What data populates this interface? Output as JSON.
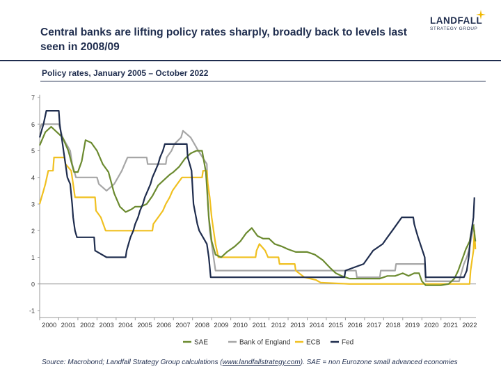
{
  "header": {
    "title": "Central banks are lifting policy rates sharply, broadly back to levels last seen in 2008/09",
    "subtitle": "Policy rates, January 2005 – October 2022"
  },
  "logo": {
    "name": "LANDFALL",
    "tagline": "STRATEGY GROUP"
  },
  "footer": {
    "prefix": "Source: Macrobond; Landfall Strategy Group calculations (",
    "link": "www.landfallstrategy.com",
    "suffix": "). SAE = non Eurozone small advanced economies"
  },
  "colors": {
    "navy": "#1f2d4e",
    "SAE": "#6b8a2f",
    "BoE": "#a6a6a6",
    "ECB": "#f0c020",
    "Fed": "#1f2d4e",
    "gold": "#f0b800"
  },
  "chart_data": {
    "type": "line",
    "title": "Policy rates, January 2005 – October 2022",
    "xlabel": "",
    "ylabel": "",
    "xlim": [
      2000,
      2022.83
    ],
    "ylim": [
      -1,
      7
    ],
    "yticks": [
      -1,
      0,
      1,
      2,
      3,
      4,
      5,
      6,
      7
    ],
    "xticks": [
      2000,
      2001,
      2002,
      2003,
      2004,
      2005,
      2006,
      2007,
      2008,
      2009,
      2010,
      2011,
      2012,
      2013,
      2014,
      2015,
      2016,
      2017,
      2018,
      2019,
      2020,
      2021,
      2022
    ],
    "legend_position": "bottom",
    "series": [
      {
        "name": "SAE",
        "key": "SAE",
        "points": [
          [
            2000,
            5.2
          ],
          [
            2000.3,
            5.7
          ],
          [
            2000.6,
            5.9
          ],
          [
            2000.9,
            5.7
          ],
          [
            2001.2,
            5.5
          ],
          [
            2001.5,
            5.0
          ],
          [
            2001.8,
            4.2
          ],
          [
            2002.0,
            4.2
          ],
          [
            2002.2,
            4.6
          ],
          [
            2002.4,
            5.4
          ],
          [
            2002.7,
            5.3
          ],
          [
            2003.0,
            5.0
          ],
          [
            2003.3,
            4.5
          ],
          [
            2003.6,
            4.2
          ],
          [
            2003.9,
            3.4
          ],
          [
            2004.2,
            2.9
          ],
          [
            2004.5,
            2.7
          ],
          [
            2004.8,
            2.8
          ],
          [
            2005.0,
            2.9
          ],
          [
            2005.3,
            2.9
          ],
          [
            2005.6,
            3.0
          ],
          [
            2005.9,
            3.3
          ],
          [
            2006.2,
            3.7
          ],
          [
            2006.5,
            3.9
          ],
          [
            2006.8,
            4.1
          ],
          [
            2007.0,
            4.2
          ],
          [
            2007.3,
            4.4
          ],
          [
            2007.6,
            4.7
          ],
          [
            2007.9,
            4.9
          ],
          [
            2008.2,
            5.0
          ],
          [
            2008.5,
            5.0
          ],
          [
            2008.7,
            4.2
          ],
          [
            2008.85,
            2.5
          ],
          [
            2009.0,
            1.6
          ],
          [
            2009.2,
            1.1
          ],
          [
            2009.5,
            1.0
          ],
          [
            2009.8,
            1.2
          ],
          [
            2010.2,
            1.4
          ],
          [
            2010.5,
            1.6
          ],
          [
            2010.8,
            1.9
          ],
          [
            2011.1,
            2.1
          ],
          [
            2011.4,
            1.8
          ],
          [
            2011.7,
            1.7
          ],
          [
            2012.0,
            1.7
          ],
          [
            2012.3,
            1.5
          ],
          [
            2012.7,
            1.4
          ],
          [
            2013.0,
            1.3
          ],
          [
            2013.4,
            1.2
          ],
          [
            2013.7,
            1.2
          ],
          [
            2014.0,
            1.2
          ],
          [
            2014.4,
            1.1
          ],
          [
            2014.8,
            0.9
          ],
          [
            2015.2,
            0.6
          ],
          [
            2015.5,
            0.4
          ],
          [
            2015.8,
            0.3
          ],
          [
            2016.2,
            0.2
          ],
          [
            2016.6,
            0.2
          ],
          [
            2017.0,
            0.2
          ],
          [
            2017.4,
            0.2
          ],
          [
            2017.8,
            0.2
          ],
          [
            2018.2,
            0.3
          ],
          [
            2018.6,
            0.3
          ],
          [
            2019.0,
            0.4
          ],
          [
            2019.3,
            0.3
          ],
          [
            2019.6,
            0.4
          ],
          [
            2019.85,
            0.4
          ],
          [
            2020.0,
            0.1
          ],
          [
            2020.2,
            -0.05
          ],
          [
            2020.6,
            -0.05
          ],
          [
            2021.0,
            -0.05
          ],
          [
            2021.4,
            0.0
          ],
          [
            2021.7,
            0.2
          ],
          [
            2021.9,
            0.5
          ],
          [
            2022.1,
            0.9
          ],
          [
            2022.3,
            1.3
          ],
          [
            2022.5,
            1.6
          ],
          [
            2022.6,
            2.0
          ],
          [
            2022.7,
            2.2
          ],
          [
            2022.8,
            1.6
          ]
        ]
      },
      {
        "name": "Bank of England",
        "key": "BoE",
        "points": [
          [
            2000,
            5.8
          ],
          [
            2000.1,
            6.0
          ],
          [
            2001.0,
            6.0
          ],
          [
            2001.1,
            5.75
          ],
          [
            2001.2,
            5.5
          ],
          [
            2001.4,
            5.25
          ],
          [
            2001.6,
            5.0
          ],
          [
            2001.7,
            4.5
          ],
          [
            2001.9,
            4.0
          ],
          [
            2003.0,
            4.0
          ],
          [
            2003.1,
            3.75
          ],
          [
            2003.5,
            3.5
          ],
          [
            2003.9,
            3.75
          ],
          [
            2004.1,
            4.0
          ],
          [
            2004.3,
            4.25
          ],
          [
            2004.45,
            4.5
          ],
          [
            2004.6,
            4.75
          ],
          [
            2005.6,
            4.75
          ],
          [
            2005.65,
            4.5
          ],
          [
            2006.6,
            4.5
          ],
          [
            2006.65,
            4.75
          ],
          [
            2006.9,
            5.0
          ],
          [
            2007.05,
            5.25
          ],
          [
            2007.4,
            5.5
          ],
          [
            2007.5,
            5.75
          ],
          [
            2007.9,
            5.5
          ],
          [
            2008.1,
            5.25
          ],
          [
            2008.3,
            5.0
          ],
          [
            2008.75,
            4.5
          ],
          [
            2008.8,
            3.0
          ],
          [
            2008.9,
            2.0
          ],
          [
            2009.0,
            1.5
          ],
          [
            2009.1,
            1.0
          ],
          [
            2009.2,
            0.5
          ],
          [
            2016.55,
            0.5
          ],
          [
            2016.6,
            0.25
          ],
          [
            2017.8,
            0.25
          ],
          [
            2017.85,
            0.5
          ],
          [
            2018.6,
            0.5
          ],
          [
            2018.65,
            0.75
          ],
          [
            2020.15,
            0.75
          ],
          [
            2020.2,
            0.1
          ],
          [
            2021.95,
            0.1
          ],
          [
            2022.0,
            0.25
          ],
          [
            2022.1,
            0.5
          ],
          [
            2022.2,
            0.75
          ],
          [
            2022.35,
            1.0
          ],
          [
            2022.45,
            1.25
          ],
          [
            2022.6,
            1.75
          ],
          [
            2022.72,
            2.25
          ]
        ]
      },
      {
        "name": "ECB",
        "key": "ECB",
        "points": [
          [
            2000,
            3.0
          ],
          [
            2000.1,
            3.25
          ],
          [
            2000.2,
            3.5
          ],
          [
            2000.3,
            3.75
          ],
          [
            2000.45,
            4.25
          ],
          [
            2000.7,
            4.25
          ],
          [
            2000.75,
            4.75
          ],
          [
            2001.3,
            4.75
          ],
          [
            2001.35,
            4.5
          ],
          [
            2001.65,
            4.25
          ],
          [
            2001.75,
            3.75
          ],
          [
            2001.85,
            3.25
          ],
          [
            2002.9,
            3.25
          ],
          [
            2002.95,
            2.75
          ],
          [
            2003.2,
            2.5
          ],
          [
            2003.45,
            2.0
          ],
          [
            2005.9,
            2.0
          ],
          [
            2005.95,
            2.25
          ],
          [
            2006.2,
            2.5
          ],
          [
            2006.45,
            2.75
          ],
          [
            2006.6,
            3.0
          ],
          [
            2006.8,
            3.25
          ],
          [
            2006.95,
            3.5
          ],
          [
            2007.2,
            3.75
          ],
          [
            2007.45,
            4.0
          ],
          [
            2008.5,
            4.0
          ],
          [
            2008.55,
            4.25
          ],
          [
            2008.75,
            4.25
          ],
          [
            2008.8,
            3.75
          ],
          [
            2008.9,
            3.25
          ],
          [
            2009.0,
            2.5
          ],
          [
            2009.2,
            1.5
          ],
          [
            2009.35,
            1.0
          ],
          [
            2011.3,
            1.0
          ],
          [
            2011.35,
            1.25
          ],
          [
            2011.5,
            1.5
          ],
          [
            2011.8,
            1.25
          ],
          [
            2011.95,
            1.0
          ],
          [
            2012.5,
            1.0
          ],
          [
            2012.55,
            0.75
          ],
          [
            2013.35,
            0.75
          ],
          [
            2013.4,
            0.5
          ],
          [
            2013.85,
            0.25
          ],
          [
            2014.45,
            0.15
          ],
          [
            2014.7,
            0.05
          ],
          [
            2016.2,
            0.0
          ],
          [
            2022.5,
            0.0
          ],
          [
            2022.55,
            0.5
          ],
          [
            2022.7,
            1.25
          ],
          [
            2022.75,
            2.0
          ],
          [
            2022.8,
            1.3
          ]
        ]
      },
      {
        "name": "Fed",
        "key": "Fed",
        "points": [
          [
            2000,
            5.5
          ],
          [
            2000.1,
            5.75
          ],
          [
            2000.2,
            6.0
          ],
          [
            2000.35,
            6.5
          ],
          [
            2001.0,
            6.5
          ],
          [
            2001.05,
            6.0
          ],
          [
            2001.15,
            5.5
          ],
          [
            2001.25,
            5.0
          ],
          [
            2001.35,
            4.5
          ],
          [
            2001.45,
            4.0
          ],
          [
            2001.6,
            3.75
          ],
          [
            2001.7,
            3.0
          ],
          [
            2001.75,
            2.5
          ],
          [
            2001.85,
            2.0
          ],
          [
            2001.95,
            1.75
          ],
          [
            2002.85,
            1.75
          ],
          [
            2002.9,
            1.25
          ],
          [
            2003.5,
            1.0
          ],
          [
            2004.5,
            1.0
          ],
          [
            2004.55,
            1.25
          ],
          [
            2004.65,
            1.5
          ],
          [
            2004.75,
            1.75
          ],
          [
            2004.9,
            2.0
          ],
          [
            2005.0,
            2.25
          ],
          [
            2005.15,
            2.5
          ],
          [
            2005.25,
            2.75
          ],
          [
            2005.4,
            3.0
          ],
          [
            2005.5,
            3.25
          ],
          [
            2005.65,
            3.5
          ],
          [
            2005.8,
            3.75
          ],
          [
            2005.9,
            4.0
          ],
          [
            2006.05,
            4.25
          ],
          [
            2006.2,
            4.5
          ],
          [
            2006.3,
            4.75
          ],
          [
            2006.45,
            5.0
          ],
          [
            2006.55,
            5.25
          ],
          [
            2007.7,
            5.25
          ],
          [
            2007.75,
            4.75
          ],
          [
            2007.85,
            4.5
          ],
          [
            2007.95,
            4.25
          ],
          [
            2008.05,
            3.0
          ],
          [
            2008.25,
            2.25
          ],
          [
            2008.35,
            2.0
          ],
          [
            2008.75,
            1.5
          ],
          [
            2008.85,
            1.0
          ],
          [
            2008.95,
            0.25
          ],
          [
            2015.95,
            0.25
          ],
          [
            2016.0,
            0.5
          ],
          [
            2016.95,
            0.75
          ],
          [
            2017.2,
            1.0
          ],
          [
            2017.45,
            1.25
          ],
          [
            2017.95,
            1.5
          ],
          [
            2018.2,
            1.75
          ],
          [
            2018.45,
            2.0
          ],
          [
            2018.7,
            2.25
          ],
          [
            2018.95,
            2.5
          ],
          [
            2019.55,
            2.5
          ],
          [
            2019.6,
            2.25
          ],
          [
            2019.7,
            2.0
          ],
          [
            2019.8,
            1.75
          ],
          [
            2020.15,
            1.0
          ],
          [
            2020.2,
            0.25
          ],
          [
            2022.2,
            0.25
          ],
          [
            2022.35,
            0.5
          ],
          [
            2022.45,
            1.0
          ],
          [
            2022.55,
            1.75
          ],
          [
            2022.7,
            2.5
          ],
          [
            2022.75,
            3.25
          ]
        ]
      }
    ]
  }
}
